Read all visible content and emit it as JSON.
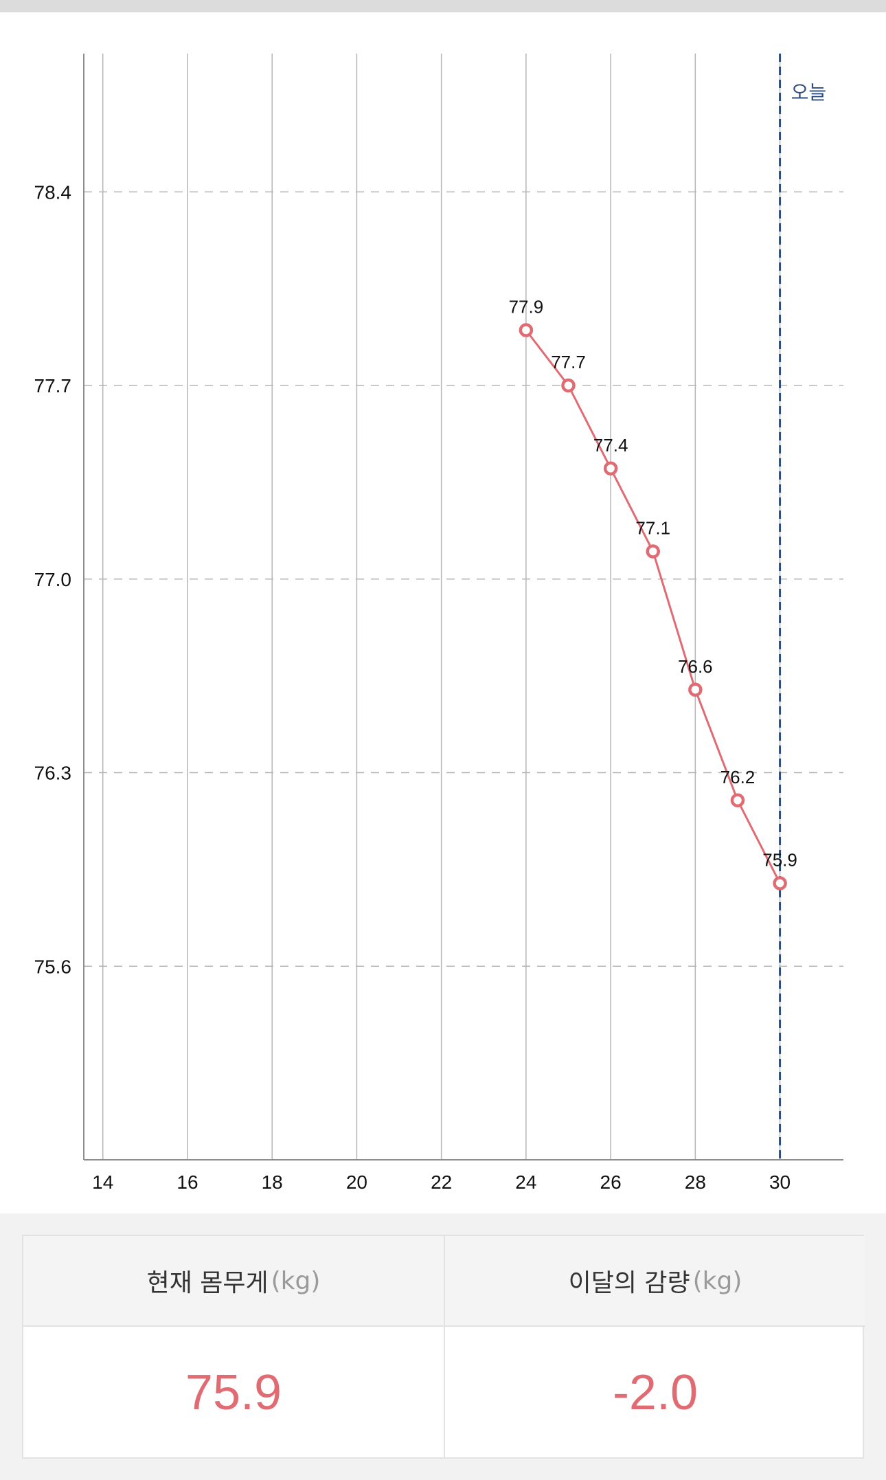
{
  "chart_data": {
    "type": "line",
    "xlabel": "",
    "ylabel": "",
    "x_ticks": [
      "14",
      "16",
      "18",
      "20",
      "22",
      "24",
      "26",
      "28",
      "30"
    ],
    "xlim": [
      13.55,
      31.5
    ],
    "y_ticks": [
      "78.4",
      "77.7",
      "77.0",
      "76.3",
      "75.6"
    ],
    "ylim": [
      74.9,
      78.9
    ],
    "grid": "vertical solid lines at x ticks, dashed horizontal lines at y ticks",
    "series": [
      {
        "x": [
          24,
          25,
          26,
          27,
          28,
          29,
          30
        ],
        "y": [
          77.9,
          77.7,
          77.4,
          77.1,
          76.6,
          76.2,
          75.9
        ],
        "labels": [
          "77.9",
          "77.7",
          "77.4",
          "77.1",
          "76.6",
          "76.2",
          "75.9"
        ]
      }
    ],
    "today_marker": {
      "x": 30,
      "label": "오늘"
    },
    "colors": {
      "line": "#e06b73",
      "today_line": "#2f4d7e",
      "grid": "#b5b5b5",
      "axis_text": "#111111"
    }
  },
  "summary": {
    "current_weight": {
      "label": "현재 몸무게",
      "unit": "(kg)",
      "value": "75.9"
    },
    "monthly_change": {
      "label": "이달의 감량",
      "unit": "(kg)",
      "value": "-2.0"
    }
  },
  "colors": {
    "accent": "#e06b73",
    "page_bg": "#f2f2f2",
    "panel_bg": "#ffffff"
  }
}
